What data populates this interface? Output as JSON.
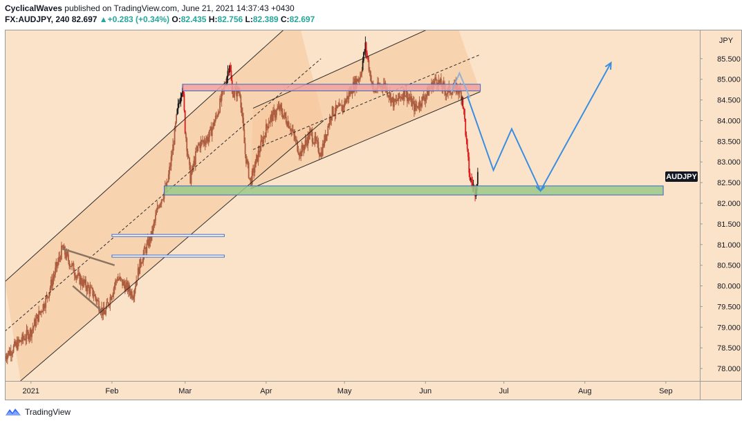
{
  "header": {
    "author": "CyclicalWaves",
    "published": "published on TradingView.com, June 21, 2021 14:37:43 +0430",
    "symbol": "FX:AUDJPY, 240",
    "last": "82.697",
    "change_arrow": "▲",
    "change": "+0.283 (+0.34%)",
    "o_label": "O:",
    "o_value": "82.435",
    "h_label": "H:",
    "h_value": "82.756",
    "l_label": "L:",
    "l_value": "82.389",
    "c_label": "C:",
    "c_value": "82.697"
  },
  "footer": {
    "brand": "TradingView",
    "logo_icon": "tradingview-logo-icon"
  },
  "colors": {
    "background": "#fbe3c9",
    "channel_fill": "#f5c79b",
    "candle": "#ad5d3f",
    "candle_red": "#e01b1b",
    "candle_black": "#1a1a1a",
    "resistance_zone": "#f0a1a0",
    "support_zone": "#9ac98a",
    "projection": "#3a8ee0",
    "axis_text": "#131722",
    "price_tag": "#131722"
  },
  "chart_data": {
    "type": "candlestick",
    "symbol": "AUDJPY",
    "price_tag": "AUDJPY",
    "y_axis_unit": "JPY",
    "ylim": [
      77.7,
      86.2
    ],
    "y_ticks": [
      {
        "value": 78.0,
        "label": "78.000"
      },
      {
        "value": 78.5,
        "label": "78.500"
      },
      {
        "value": 79.0,
        "label": "79.000"
      },
      {
        "value": 79.5,
        "label": "79.500"
      },
      {
        "value": 80.0,
        "label": "80.000"
      },
      {
        "value": 80.5,
        "label": "80.500"
      },
      {
        "value": 81.0,
        "label": "81.000"
      },
      {
        "value": 81.5,
        "label": "81.500"
      },
      {
        "value": 82.0,
        "label": "82.000"
      },
      {
        "value": 82.5,
        "label": "82.500"
      },
      {
        "value": 83.0,
        "label": "83.000"
      },
      {
        "value": 83.5,
        "label": "83.500"
      },
      {
        "value": 84.0,
        "label": "84.000"
      },
      {
        "value": 84.5,
        "label": "84.500"
      },
      {
        "value": 85.0,
        "label": "85.000"
      },
      {
        "value": 85.5,
        "label": "85.500"
      }
    ],
    "x_range": [
      "2020-12-22",
      "2021-09-14"
    ],
    "x_ticks": [
      {
        "date": "2021-01-01",
        "label": "2021"
      },
      {
        "date": "2021-02-01",
        "label": "Feb"
      },
      {
        "date": "2021-03-01",
        "label": "Mar"
      },
      {
        "date": "2021-04-01",
        "label": "Apr"
      },
      {
        "date": "2021-05-01",
        "label": "May"
      },
      {
        "date": "2021-06-01",
        "label": "Jun"
      },
      {
        "date": "2021-07-01",
        "label": "Jul"
      },
      {
        "date": "2021-08-01",
        "label": "Aug"
      },
      {
        "date": "2021-09-01",
        "label": "Sep"
      }
    ],
    "price_path": [
      [
        "2020-12-22",
        78.3
      ],
      [
        "2021-01-01",
        78.9
      ],
      [
        "2021-01-07",
        79.7
      ],
      [
        "2021-01-13",
        80.9
      ],
      [
        "2021-01-19",
        80.2
      ],
      [
        "2021-01-25",
        79.8
      ],
      [
        "2021-01-29",
        79.3
      ],
      [
        "2021-02-03",
        80.2
      ],
      [
        "2021-02-09",
        79.8
      ],
      [
        "2021-02-12",
        80.6
      ],
      [
        "2021-02-16",
        81.2
      ],
      [
        "2021-02-19",
        82.0
      ],
      [
        "2021-02-22",
        82.4
      ],
      [
        "2021-02-24",
        83.2
      ],
      [
        "2021-02-26",
        84.2
      ],
      [
        "2021-02-28",
        84.9
      ],
      [
        "2021-03-01",
        83.8
      ],
      [
        "2021-03-03",
        82.6
      ],
      [
        "2021-03-06",
        83.4
      ],
      [
        "2021-03-10",
        83.6
      ],
      [
        "2021-03-13",
        84.1
      ],
      [
        "2021-03-16",
        84.8
      ],
      [
        "2021-03-18",
        85.4
      ],
      [
        "2021-03-19",
        84.7
      ],
      [
        "2021-03-22",
        84.7
      ],
      [
        "2021-03-24",
        83.2
      ],
      [
        "2021-03-26",
        82.5
      ],
      [
        "2021-03-29",
        83.2
      ],
      [
        "2021-04-02",
        84.0
      ],
      [
        "2021-04-06",
        84.3
      ],
      [
        "2021-04-10",
        83.9
      ],
      [
        "2021-04-14",
        83.2
      ],
      [
        "2021-04-18",
        83.7
      ],
      [
        "2021-04-22",
        83.2
      ],
      [
        "2021-04-26",
        84.2
      ],
      [
        "2021-04-30",
        84.3
      ],
      [
        "2021-05-04",
        84.8
      ],
      [
        "2021-05-07",
        85.1
      ],
      [
        "2021-05-09",
        85.8
      ],
      [
        "2021-05-12",
        84.7
      ],
      [
        "2021-05-16",
        84.9
      ],
      [
        "2021-05-20",
        84.4
      ],
      [
        "2021-05-24",
        84.7
      ],
      [
        "2021-05-28",
        84.3
      ],
      [
        "2021-06-01",
        84.6
      ],
      [
        "2021-06-05",
        85.0
      ],
      [
        "2021-06-09",
        84.7
      ],
      [
        "2021-06-13",
        84.8
      ],
      [
        "2021-06-15",
        84.6
      ],
      [
        "2021-06-16",
        84.0
      ],
      [
        "2021-06-17",
        83.2
      ],
      [
        "2021-06-18",
        82.6
      ],
      [
        "2021-06-20",
        82.3
      ],
      [
        "2021-06-21",
        82.7
      ]
    ],
    "drawings": {
      "channels": [
        {
          "upper": [
            [
              "2020-12-22",
              80.1
            ],
            [
              "2021-04-13",
              86.5
            ]
          ],
          "mid": [
            [
              "2020-12-22",
              78.9
            ],
            [
              "2021-04-22",
              85.5
            ]
          ],
          "lower": [
            [
              "2020-12-28",
              77.7
            ],
            [
              "2021-04-23",
              84.0
            ]
          ]
        },
        {
          "upper": [
            [
              "2021-03-27",
              84.3
            ],
            [
              "2021-06-12",
              86.5
            ]
          ],
          "mid": [
            [
              "2021-03-27",
              83.3
            ],
            [
              "2021-06-22",
              85.6
            ]
          ],
          "lower": [
            [
              "2021-03-26",
              82.35
            ],
            [
              "2021-06-22",
              84.7
            ]
          ]
        }
      ],
      "zones": [
        {
          "name": "resistance",
          "from": "2021-02-28",
          "to": "2021-06-22",
          "top": 84.88,
          "bottom": 84.72
        },
        {
          "name": "support",
          "from": "2021-02-21",
          "to": "2021-08-31",
          "top": 82.42,
          "bottom": 82.2
        }
      ],
      "horizontal_lines": [
        {
          "from": "2021-02-01",
          "to": "2021-03-16",
          "value": 81.22
        },
        {
          "from": "2021-02-01",
          "to": "2021-03-16",
          "value": 80.72
        }
      ],
      "triangle": [
        {
          "from": [
            "2021-01-13",
            80.9
          ],
          "to": [
            "2021-02-02",
            80.5
          ]
        },
        {
          "from": [
            "2021-01-17",
            80.0
          ],
          "to": [
            "2021-01-28",
            79.4
          ]
        }
      ],
      "ghost_path": [
        [
          "2021-06-11",
          84.7
        ],
        [
          "2021-06-14",
          85.15
        ],
        [
          "2021-06-18",
          84.55
        ]
      ],
      "projection": [
        [
          "2021-06-17",
          84.6
        ],
        [
          "2021-06-27",
          82.8
        ],
        [
          "2021-07-04",
          83.8
        ],
        [
          "2021-07-15",
          82.3
        ],
        [
          "2021-08-11",
          85.4
        ]
      ]
    }
  }
}
